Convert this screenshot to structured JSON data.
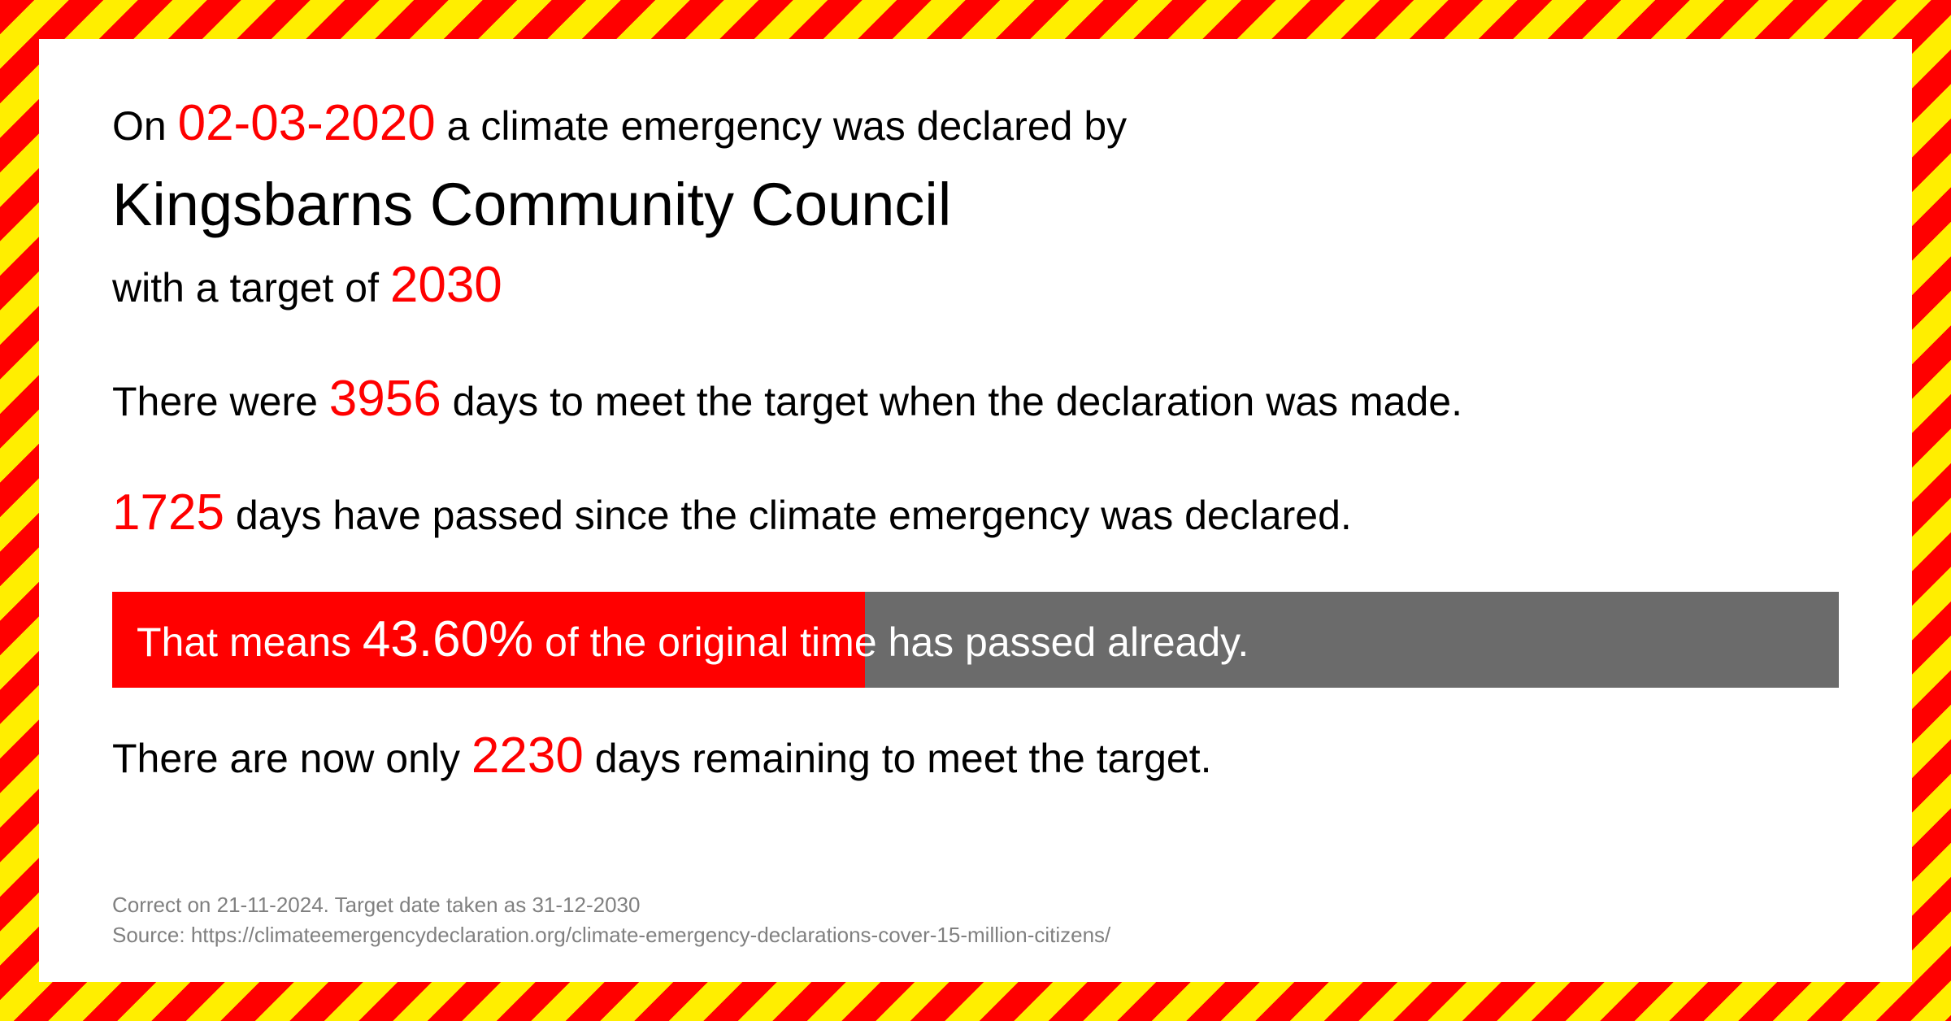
{
  "text": {
    "line1_pre": "On ",
    "date": "02-03-2020",
    "line1_post": " a climate emergency was declared by",
    "council": "Kingsbarns Community Council",
    "line3_pre": "with a target of  ",
    "target_year": "2030",
    "line4_pre": "There were ",
    "total_days": "3956",
    "line4_post": "  days to meet the target when the declaration was made.",
    "days_passed": "1725",
    "line5_post": " days have passed since the climate emergency was declared.",
    "progress_pre": "That means ",
    "progress_pct": "43.60%",
    "progress_post": " of the original time has passed already.",
    "line6_pre": "There are now only ",
    "days_remaining": "2230",
    "line6_post": " days remaining to meet the target."
  },
  "progress": {
    "fill_percent": 43.6,
    "fill_color": "#ff0000",
    "track_color": "#6b6b6b"
  },
  "colors": {
    "highlight": "#ff0000",
    "text": "#000000",
    "footer": "#808080",
    "bg": "#ffffff"
  },
  "footer": {
    "line1": "Correct on 21-11-2024. Target date taken as 31-12-2030",
    "line2": "Source: https://climateemergencydeclaration.org/climate-emergency-declarations-cover-15-million-citizens/"
  }
}
